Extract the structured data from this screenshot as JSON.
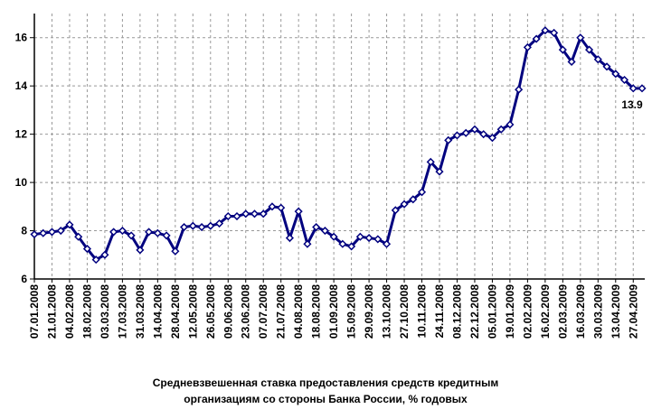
{
  "chart_data": {
    "type": "line",
    "title": [
      "Средневзвешенная ставка предоставления средств кредитным",
      "организациям со стороны Банка России, % годовых"
    ],
    "categories": [
      "07.01.2008",
      null,
      "21.01.2008",
      null,
      "04.02.2008",
      null,
      "18.02.2008",
      null,
      "03.03.2008",
      null,
      "17.03.2008",
      null,
      "31.03.2008",
      null,
      "14.04.2008",
      null,
      "28.04.2008",
      null,
      "12.05.2008",
      null,
      "26.05.2008",
      null,
      "09.06.2008",
      null,
      "23.06.2008",
      null,
      "07.07.2008",
      null,
      "21.07.2008",
      null,
      "04.08.2008",
      null,
      "18.08.2008",
      null,
      "01.09.2008",
      null,
      "15.09.2008",
      null,
      "29.09.2008",
      null,
      "13.10.2008",
      null,
      "27.10.2008",
      null,
      "10.11.2008",
      null,
      "24.11.2008",
      null,
      "08.12.2008",
      null,
      "22.12.2008",
      null,
      "05.01.2009",
      null,
      "19.01.2009",
      null,
      "02.02.2009",
      null,
      "16.02.2009",
      null,
      "02.03.2009",
      null,
      "16.03.2009",
      null,
      "30.03.2009",
      null,
      "13.04.2009",
      null,
      "27.04.2009",
      null
    ],
    "series": [
      {
        "color": "#00007f",
        "values": [
          7.85,
          7.9,
          7.95,
          8.0,
          8.25,
          7.75,
          7.25,
          6.8,
          7.0,
          7.95,
          8.0,
          7.8,
          7.2,
          7.95,
          7.9,
          7.8,
          7.15,
          8.15,
          8.2,
          8.15,
          8.2,
          8.3,
          8.6,
          8.6,
          8.7,
          8.7,
          8.7,
          9.0,
          8.95,
          7.7,
          8.8,
          7.45,
          8.15,
          8.0,
          7.75,
          7.45,
          7.35,
          7.75,
          7.7,
          7.65,
          7.45,
          8.85,
          9.1,
          9.3,
          9.6,
          10.85,
          10.45,
          11.75,
          11.95,
          12.05,
          12.2,
          12.0,
          11.85,
          12.2,
          12.4,
          13.85,
          15.6,
          15.95,
          16.3,
          16.2,
          15.5,
          15.0,
          16.0,
          15.5,
          15.1,
          14.8,
          14.5,
          14.25,
          13.9,
          13.9
        ],
        "value_labels": [
          null,
          null,
          null,
          null,
          null,
          null,
          null,
          null,
          null,
          null,
          null,
          null,
          null,
          null,
          null,
          null,
          null,
          null,
          null,
          null,
          null,
          null,
          null,
          null,
          null,
          null,
          null,
          null,
          null,
          null,
          null,
          null,
          null,
          null,
          null,
          null,
          null,
          null,
          null,
          null,
          null,
          null,
          null,
          null,
          null,
          null,
          null,
          null,
          null,
          null,
          null,
          null,
          null,
          null,
          null,
          null,
          null,
          null,
          null,
          null,
          null,
          null,
          null,
          null,
          null,
          null,
          null,
          null,
          null,
          "13.9"
        ],
        "value_label_color": "#33339a"
      }
    ],
    "ylim": [
      6,
      17
    ],
    "yticks": [
      6,
      8,
      10,
      12,
      14,
      16
    ],
    "grid": true
  }
}
